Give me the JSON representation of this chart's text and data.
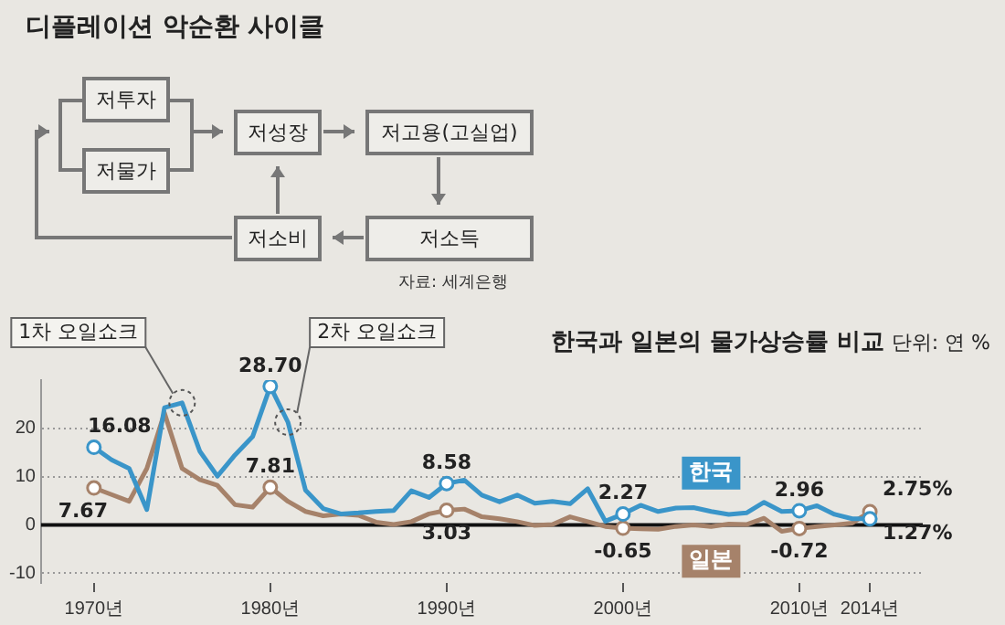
{
  "chart_data": [
    {
      "type": "other",
      "title": "디플레이션 악순환 사이클",
      "annotations": [
        "저투자",
        "저물가",
        "저성장",
        "저고용(고실업)",
        "저소비",
        "저소득",
        "자료: 세계은행"
      ]
    },
    {
      "type": "line",
      "title": "한국과 일본의 물가상승률 비교",
      "subtitle": "단위: 연 %",
      "x": [
        1970,
        1971,
        1972,
        1973,
        1974,
        1975,
        1976,
        1977,
        1978,
        1979,
        1980,
        1981,
        1982,
        1983,
        1984,
        1985,
        1986,
        1987,
        1988,
        1989,
        1990,
        1991,
        1992,
        1993,
        1994,
        1995,
        1996,
        1997,
        1998,
        1999,
        2000,
        2001,
        2002,
        2003,
        2004,
        2005,
        2006,
        2007,
        2008,
        2009,
        2010,
        2011,
        2012,
        2013,
        2014
      ],
      "series": [
        {
          "name": "한국",
          "color": "#3a95c9",
          "values": [
            16.08,
            13.5,
            11.7,
            3.2,
            24.3,
            25.3,
            15.3,
            10.1,
            14.5,
            18.3,
            28.7,
            21.3,
            7.2,
            3.4,
            2.3,
            2.5,
            2.8,
            3.0,
            7.1,
            5.7,
            8.58,
            9.3,
            6.2,
            4.8,
            6.2,
            4.5,
            4.9,
            4.4,
            7.5,
            0.8,
            2.27,
            4.1,
            2.8,
            3.5,
            3.6,
            2.8,
            2.2,
            2.5,
            4.7,
            2.8,
            2.96,
            4.0,
            2.2,
            1.3,
            1.27
          ],
          "value_labels": [
            "16.08",
            null,
            null,
            null,
            null,
            null,
            null,
            null,
            null,
            null,
            "28.70",
            null,
            null,
            null,
            null,
            null,
            null,
            null,
            null,
            null,
            "8.58",
            null,
            null,
            null,
            null,
            null,
            null,
            null,
            null,
            null,
            "2.27",
            null,
            null,
            null,
            null,
            null,
            null,
            null,
            null,
            null,
            "2.96",
            null,
            null,
            null,
            "1.27%"
          ]
        },
        {
          "name": "일본",
          "color": "#a6826a",
          "values": [
            7.67,
            6.3,
            4.9,
            11.7,
            23.2,
            11.7,
            9.4,
            8.2,
            4.2,
            3.7,
            7.81,
            4.9,
            2.8,
            1.9,
            2.3,
            2.0,
            0.6,
            0.1,
            0.7,
            2.3,
            3.03,
            3.3,
            1.7,
            1.3,
            0.7,
            -0.1,
            0.1,
            1.7,
            0.7,
            -0.3,
            -0.65,
            -0.8,
            -0.9,
            -0.3,
            0,
            -0.3,
            0.2,
            0.1,
            1.4,
            -1.3,
            -0.72,
            -0.3,
            0,
            0.4,
            2.75
          ],
          "value_labels": [
            "7.67",
            null,
            null,
            null,
            null,
            null,
            null,
            null,
            null,
            null,
            "7.81",
            null,
            null,
            null,
            null,
            null,
            null,
            null,
            null,
            null,
            "3.03",
            null,
            null,
            null,
            null,
            null,
            null,
            null,
            null,
            null,
            "-0.65",
            null,
            null,
            null,
            null,
            null,
            null,
            null,
            null,
            null,
            "-0.72",
            null,
            null,
            null,
            "2.75%"
          ]
        }
      ],
      "xlim": [
        1967,
        2017
      ],
      "xticks": [
        {
          "value": 1970,
          "label": "1970년"
        },
        {
          "value": 1980,
          "label": "1980년"
        },
        {
          "value": 1990,
          "label": "1990년"
        },
        {
          "value": 2000,
          "label": "2000년"
        },
        {
          "value": 2010,
          "label": "2010년"
        },
        {
          "value": 2014,
          "label": "2014년"
        }
      ],
      "ylim": [
        -12,
        30
      ],
      "yticks": [
        -10,
        0,
        10,
        20
      ],
      "grid": "y",
      "legend": false,
      "ref_lines": [
        {
          "axis": "y",
          "value": 0,
          "color": "#111111"
        }
      ],
      "annotations": [
        {
          "text": "1차 오일쇼크",
          "x": 1975,
          "y": 25.3
        },
        {
          "text": "2차 오일쇼크",
          "x": 1981,
          "y": 21.3
        }
      ]
    }
  ]
}
